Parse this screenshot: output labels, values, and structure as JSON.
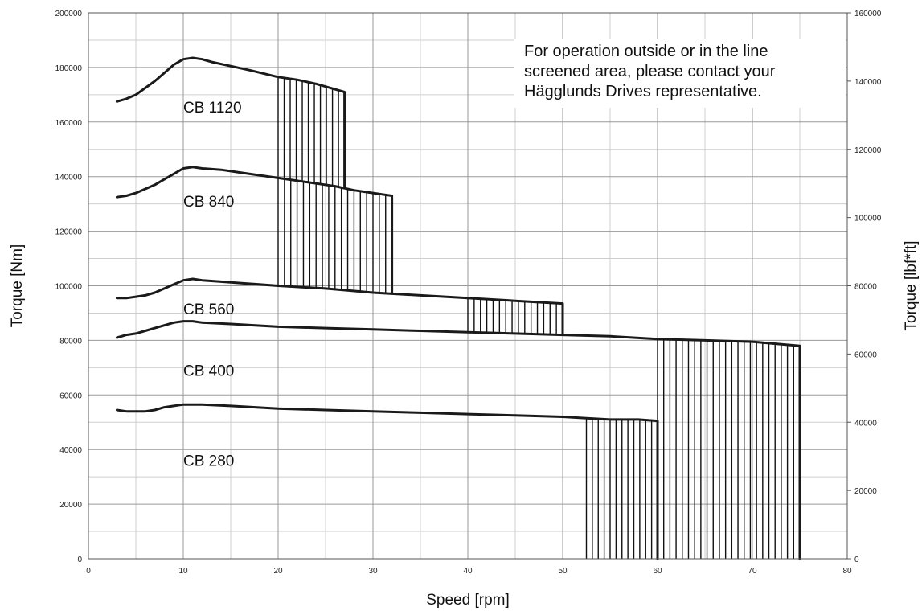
{
  "chart_data": {
    "type": "line",
    "title": "",
    "xlabel": "Speed [rpm]",
    "ylabel": "Torque [Nm]",
    "y2label": "Torque [lbf*ft]",
    "xlim": [
      0,
      80
    ],
    "ylim": [
      0,
      200000
    ],
    "y2lim": [
      0,
      160000
    ],
    "x_ticks": [
      "0",
      "10",
      "20",
      "30",
      "40",
      "50",
      "60",
      "70",
      "80"
    ],
    "y_ticks": [
      "0",
      "20000",
      "40000",
      "60000",
      "80000",
      "100000",
      "120000",
      "140000",
      "160000",
      "180000",
      "200000"
    ],
    "y2_ticks": [
      "0",
      "20000",
      "40000",
      "60000",
      "80000",
      "100000",
      "120000",
      "140000",
      "160000"
    ],
    "grid": true,
    "annotation": {
      "lines": [
        "For operation outside or in the line",
        "screened area, please contact your",
        "Hägglunds Drives representative."
      ]
    },
    "series": [
      {
        "name": "CB 1120",
        "x": [
          3,
          4,
          5,
          6,
          7,
          8,
          9,
          10,
          11,
          12,
          13,
          15,
          17,
          20,
          22,
          24,
          26,
          27,
          27
        ],
        "y": [
          167500,
          168500,
          170000,
          172500,
          175000,
          178000,
          181000,
          183000,
          183500,
          183000,
          182000,
          180500,
          179000,
          176500,
          175500,
          174000,
          172000,
          171000,
          136000
        ],
        "hatch_from": 20,
        "hatch_to": 27,
        "hatch_floor": [
          [
            20,
            140000
          ],
          [
            27,
            136000
          ]
        ]
      },
      {
        "name": "CB 840",
        "x": [
          3,
          4,
          5,
          6,
          7,
          8,
          9,
          10,
          11,
          12,
          14,
          16,
          18,
          20,
          22,
          24,
          26,
          28,
          30,
          31,
          32,
          32
        ],
        "y": [
          132500,
          133000,
          134000,
          135500,
          137000,
          139000,
          141000,
          143000,
          143500,
          143000,
          142500,
          141500,
          140500,
          139500,
          138500,
          137500,
          136500,
          135000,
          134000,
          133500,
          133000,
          97500
        ],
        "hatch_from": 20,
        "hatch_to": 32,
        "hatch_floor": [
          [
            20,
            100000
          ],
          [
            32,
            97500
          ]
        ]
      },
      {
        "name": "CB 560",
        "x": [
          3,
          4,
          5,
          6,
          7,
          8,
          9,
          10,
          11,
          12,
          14,
          16,
          18,
          20,
          25,
          30,
          35,
          40,
          45,
          50,
          50
        ],
        "y": [
          95500,
          95500,
          96000,
          96500,
          97500,
          99000,
          100500,
          102000,
          102500,
          102000,
          101500,
          101000,
          100500,
          100000,
          99000,
          97500,
          96500,
          95500,
          94500,
          93500,
          82000
        ],
        "hatch_from": 40,
        "hatch_to": 50,
        "hatch_floor": [
          [
            40,
            83000
          ],
          [
            50,
            82000
          ]
        ]
      },
      {
        "name": "CB 400",
        "x": [
          3,
          4,
          5,
          6,
          7,
          8,
          9,
          10,
          11,
          12,
          15,
          20,
          25,
          30,
          35,
          40,
          45,
          50,
          55,
          60,
          65,
          70,
          75,
          75
        ],
        "y": [
          81000,
          82000,
          82500,
          83500,
          84500,
          85500,
          86500,
          87000,
          87000,
          86500,
          86000,
          85000,
          84500,
          84000,
          83500,
          83000,
          82500,
          82000,
          81500,
          80500,
          80000,
          79500,
          78000,
          0
        ],
        "hatch_from": 60,
        "hatch_to": 75,
        "hatch_floor": [
          [
            60,
            0
          ],
          [
            75,
            0
          ]
        ]
      },
      {
        "name": "CB 280",
        "x": [
          3,
          4,
          5,
          6,
          7,
          8,
          9,
          10,
          11,
          12,
          15,
          20,
          25,
          30,
          35,
          40,
          45,
          50,
          52.5,
          55,
          58,
          60,
          60
        ],
        "y": [
          54500,
          54000,
          54000,
          54000,
          54500,
          55500,
          56000,
          56500,
          56500,
          56500,
          56000,
          55000,
          54500,
          54000,
          53500,
          53000,
          52500,
          52000,
          51500,
          51000,
          51000,
          50500,
          0
        ],
        "hatch_from": 52.5,
        "hatch_to": 60,
        "hatch_floor": [
          [
            52.5,
            0
          ],
          [
            60,
            0
          ]
        ]
      }
    ]
  },
  "series_label_positions_data": [
    {
      "name": "CB 1120",
      "x": 10,
      "y": 163500
    },
    {
      "name": "CB 840",
      "x": 10,
      "y": 129000
    },
    {
      "name": "CB 560",
      "x": 10,
      "y": 89500
    },
    {
      "name": "CB 400",
      "x": 10,
      "y": 67000
    },
    {
      "name": "CB 280",
      "x": 10,
      "y": 34000
    }
  ]
}
